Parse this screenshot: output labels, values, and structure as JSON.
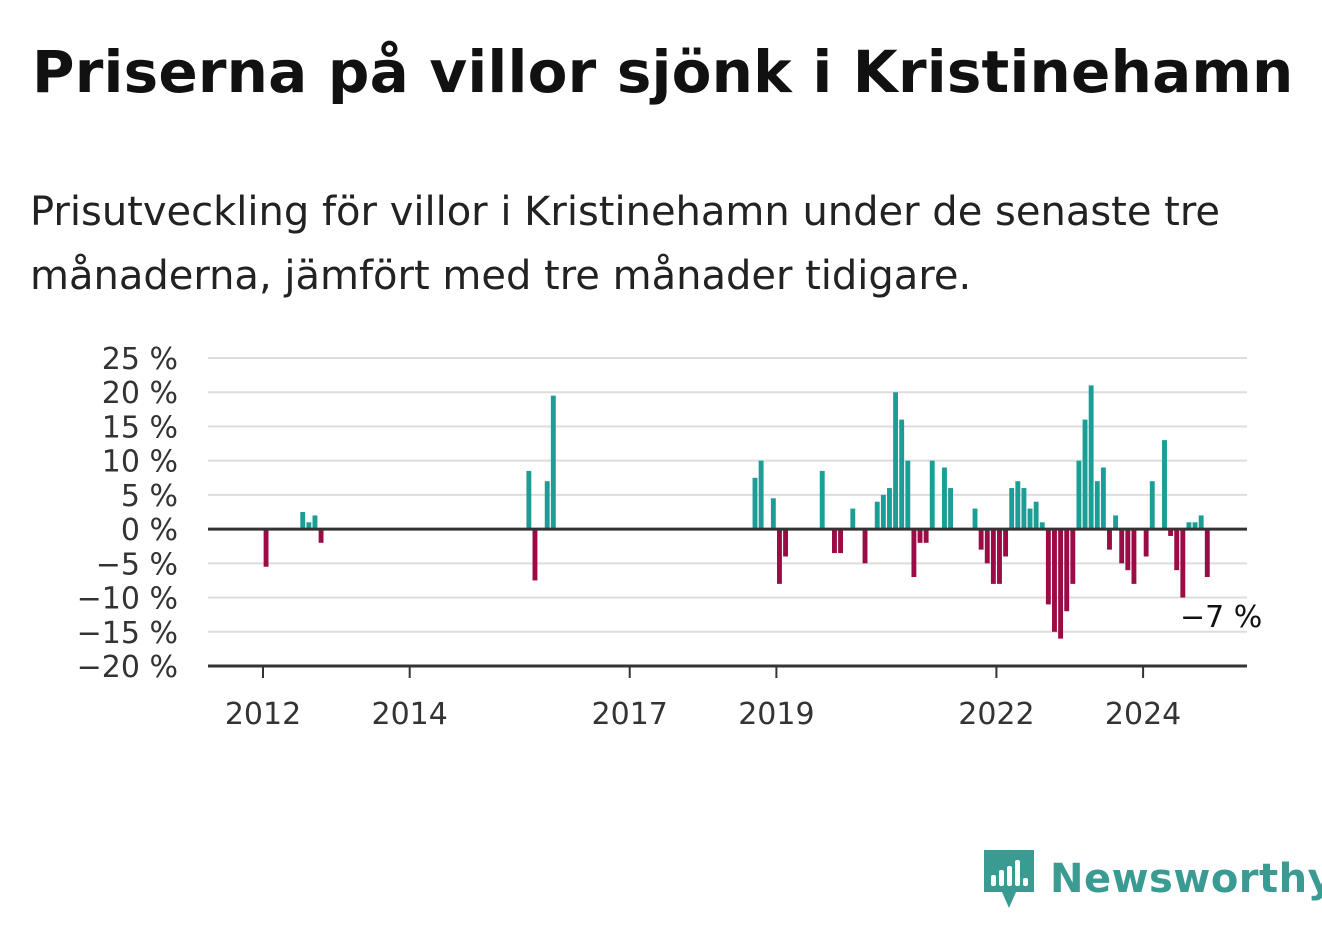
{
  "header": {
    "title": "Priserna på villor sjönk i Kristinehamn",
    "subtitle": "Prisutveckling för villor i Kristinehamn under de senaste tre månaderna, jämfört med tre månader tidigare."
  },
  "brand": {
    "name": "Newsworthy",
    "color": "#3a9b93"
  },
  "chart_data": {
    "type": "bar",
    "title": "Priserna på villor sjönk i Kristinehamn",
    "subtitle": "Prisutveckling för villor i Kristinehamn under de senaste tre månaderna, jämfört med tre månader tidigare.",
    "xlabel": "",
    "ylabel": "",
    "ylim": [
      -20,
      25
    ],
    "y_ticks": [
      25,
      20,
      15,
      10,
      5,
      0,
      -5,
      -10,
      -15,
      -20
    ],
    "y_tick_labels": [
      "25 %",
      "20 %",
      "15 %",
      "10 %",
      "5 %",
      "0 %",
      "−5 %",
      "−10 %",
      "−15 %",
      "−20 %"
    ],
    "x_ticks": [
      {
        "label": "2012",
        "date": "2012-01"
      },
      {
        "label": "2014",
        "date": "2014-01"
      },
      {
        "label": "2017",
        "date": "2017-01"
      },
      {
        "label": "2019",
        "date": "2019-01"
      },
      {
        "label": "2022",
        "date": "2022-01"
      },
      {
        "label": "2024",
        "date": "2024-01"
      }
    ],
    "x_start": "2011-04",
    "x_end": "2025-06",
    "grid": true,
    "legend": "none",
    "colors": {
      "positive": "#1a9e96",
      "negative": "#9b0b45",
      "grid": "#dddddd",
      "axis": "#333333"
    },
    "annotation": {
      "text": "−7 %",
      "date": "2024-10",
      "value": -7
    },
    "series": [
      {
        "points": [
          {
            "date": "2012-01",
            "value": -5.5
          },
          {
            "date": "2012-07",
            "value": 2.5
          },
          {
            "date": "2012-08",
            "value": 1
          },
          {
            "date": "2012-09",
            "value": 2
          },
          {
            "date": "2012-10",
            "value": -2
          },
          {
            "date": "2015-08",
            "value": 8.5
          },
          {
            "date": "2015-09",
            "value": -7.5
          },
          {
            "date": "2015-11",
            "value": 7
          },
          {
            "date": "2015-12",
            "value": 19.5
          },
          {
            "date": "2018-09",
            "value": 7.5
          },
          {
            "date": "2018-10",
            "value": 10
          },
          {
            "date": "2018-12",
            "value": 4.5
          },
          {
            "date": "2019-01",
            "value": -8
          },
          {
            "date": "2019-02",
            "value": -4
          },
          {
            "date": "2019-08",
            "value": 8.5
          },
          {
            "date": "2019-10",
            "value": -3.5
          },
          {
            "date": "2019-11",
            "value": -3.5
          },
          {
            "date": "2020-01",
            "value": 3
          },
          {
            "date": "2020-03",
            "value": -5
          },
          {
            "date": "2020-05",
            "value": 4
          },
          {
            "date": "2020-06",
            "value": 5
          },
          {
            "date": "2020-07",
            "value": 6
          },
          {
            "date": "2020-08",
            "value": 20
          },
          {
            "date": "2020-09",
            "value": 16
          },
          {
            "date": "2020-10",
            "value": 10
          },
          {
            "date": "2020-11",
            "value": -7
          },
          {
            "date": "2020-12",
            "value": -2
          },
          {
            "date": "2021-01",
            "value": -2
          },
          {
            "date": "2021-02",
            "value": 10
          },
          {
            "date": "2021-04",
            "value": 9
          },
          {
            "date": "2021-05",
            "value": 6
          },
          {
            "date": "2021-09",
            "value": 3
          },
          {
            "date": "2021-10",
            "value": -3
          },
          {
            "date": "2021-11",
            "value": -5
          },
          {
            "date": "2021-12",
            "value": -8
          },
          {
            "date": "2022-01",
            "value": -8
          },
          {
            "date": "2022-02",
            "value": -4
          },
          {
            "date": "2022-03",
            "value": 6
          },
          {
            "date": "2022-04",
            "value": 7
          },
          {
            "date": "2022-05",
            "value": 6
          },
          {
            "date": "2022-06",
            "value": 3
          },
          {
            "date": "2022-07",
            "value": 4
          },
          {
            "date": "2022-08",
            "value": 1
          },
          {
            "date": "2022-09",
            "value": -11
          },
          {
            "date": "2022-10",
            "value": -15
          },
          {
            "date": "2022-11",
            "value": -16
          },
          {
            "date": "2022-12",
            "value": -12
          },
          {
            "date": "2023-01",
            "value": -8
          },
          {
            "date": "2023-02",
            "value": 10
          },
          {
            "date": "2023-03",
            "value": 16
          },
          {
            "date": "2023-04",
            "value": 21
          },
          {
            "date": "2023-05",
            "value": 7
          },
          {
            "date": "2023-06",
            "value": 9
          },
          {
            "date": "2023-07",
            "value": -3
          },
          {
            "date": "2023-08",
            "value": 2
          },
          {
            "date": "2023-09",
            "value": -5
          },
          {
            "date": "2023-10",
            "value": -6
          },
          {
            "date": "2023-11",
            "value": -8
          },
          {
            "date": "2024-01",
            "value": -4
          },
          {
            "date": "2024-02",
            "value": 7
          },
          {
            "date": "2024-04",
            "value": 13
          },
          {
            "date": "2024-05",
            "value": -1
          },
          {
            "date": "2024-06",
            "value": -6
          },
          {
            "date": "2024-07",
            "value": -10
          },
          {
            "date": "2024-08",
            "value": 1
          },
          {
            "date": "2024-09",
            "value": 1
          },
          {
            "date": "2024-10",
            "value": 2
          },
          {
            "date": "2024-11",
            "value": -7
          }
        ]
      }
    ]
  }
}
